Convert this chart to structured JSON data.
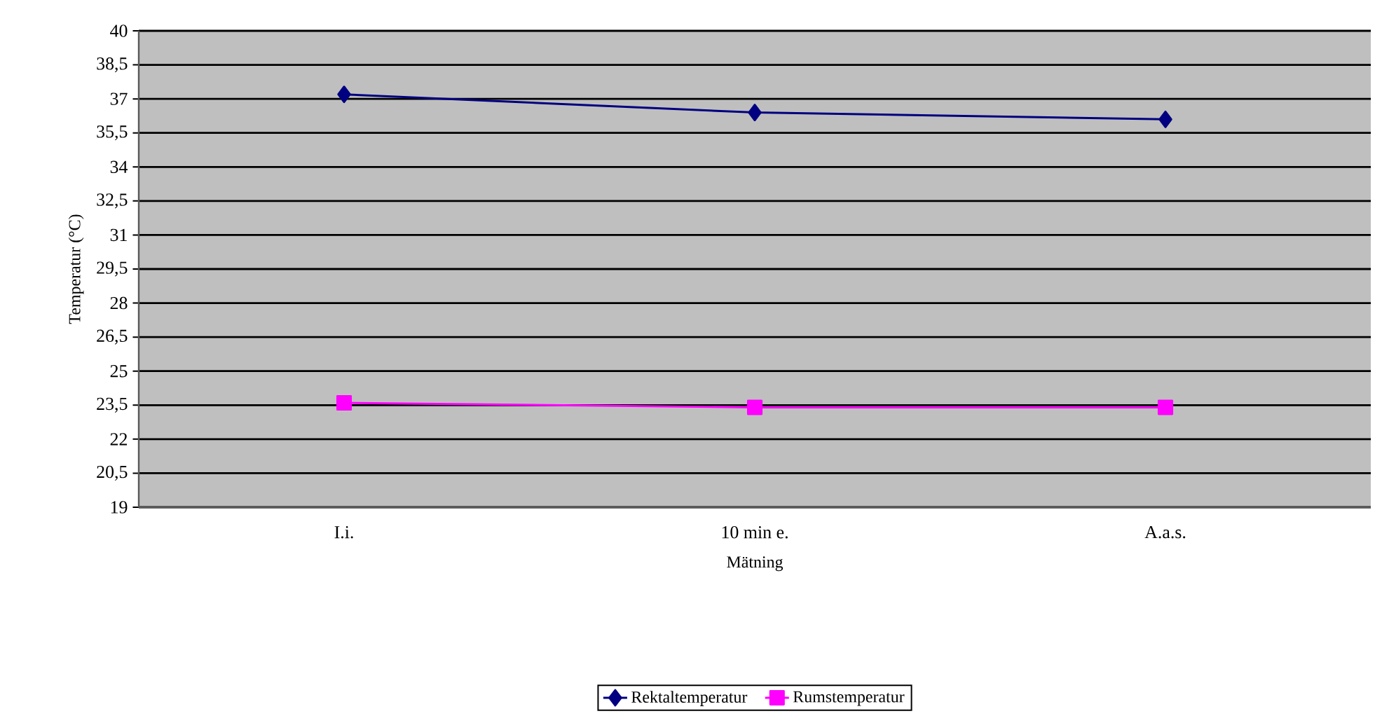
{
  "chart_data": {
    "type": "line",
    "xlabel": "Mätning",
    "ylabel": "Temperatur (°C)",
    "categories": [
      "I.i.",
      "10 min e.",
      "A.a.s."
    ],
    "series": [
      {
        "name": "Rektaltemperatur",
        "color": "#000080",
        "marker": "diamond",
        "values": [
          37.2,
          36.4,
          36.1
        ]
      },
      {
        "name": "Rumstemperatur",
        "color": "#ff00ff",
        "marker": "square",
        "values": [
          23.6,
          23.4,
          23.4
        ]
      }
    ],
    "ylim": [
      19,
      40
    ],
    "yticks": [
      19,
      {
        "value": 20.5,
        "label": "20,5"
      },
      22,
      {
        "value": 23.5,
        "label": "23,5"
      },
      25,
      {
        "value": 26.5,
        "label": "26,5"
      },
      28,
      {
        "value": 29.5,
        "label": "29,5"
      },
      31,
      {
        "value": 32.5,
        "label": "32,5"
      },
      34,
      {
        "value": 35.5,
        "label": "35,5"
      },
      37,
      {
        "value": 38.5,
        "label": "38,5"
      },
      40
    ],
    "grid": "y",
    "legend": "bottom",
    "line_style": "solid"
  }
}
